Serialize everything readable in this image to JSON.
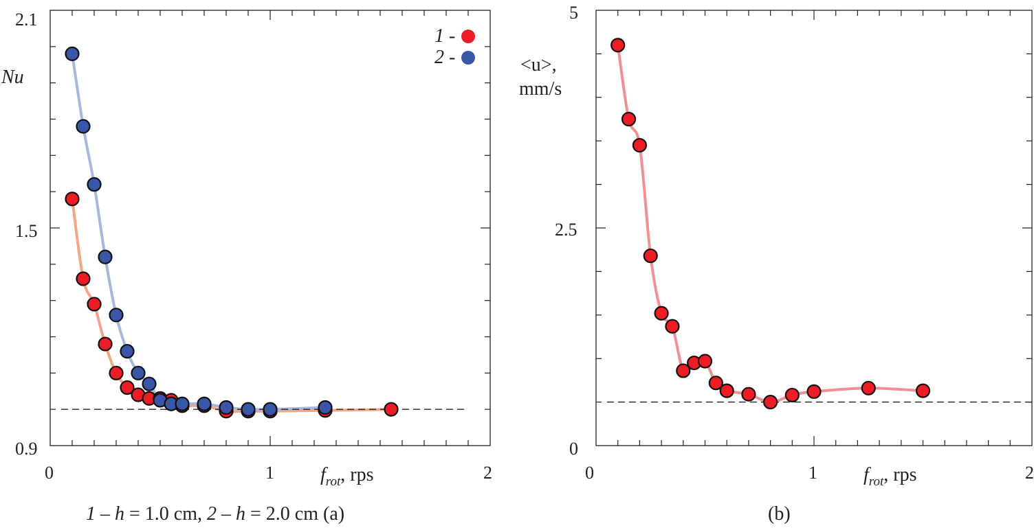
{
  "colors": {
    "series1_marker": "#ee1c25",
    "series2_marker": "#3a56a8",
    "series1_curve": "#f2a07f",
    "series2_curve": "#a3b3dc",
    "panel_b_curve": "#ef8a8e",
    "axis": "#231f20"
  },
  "chart_data": [
    {
      "type": "scatter",
      "panel": "a",
      "ylabel": "Nu",
      "xlabel": {
        "main": "f",
        "sub": "rot",
        "unit": ", rps"
      },
      "xlim": [
        0,
        2
      ],
      "ylim": [
        0.9,
        2.1
      ],
      "x_ticks": [
        "0",
        "1",
        "2"
      ],
      "y_ticks": [
        "0.9",
        "1.5",
        "2.1"
      ],
      "x_tick_values": [
        0,
        1,
        2
      ],
      "y_tick_values": [
        0.9,
        1.5,
        2.1
      ],
      "legend": [
        {
          "num": "1",
          "dash": " -",
          "color": "#ee1c25"
        },
        {
          "num": "2",
          "dash": " -",
          "color": "#3a56a8"
        }
      ],
      "caption": {
        "n1": "1",
        "sep1": " –  ",
        "h1": "h",
        "v1": " = 1.0  cm, ",
        "n2": "2",
        "sep2": " –  ",
        "h2": "h",
        "v2": " = 2.0  cm (a)"
      },
      "reference_line": {
        "y": 1.0,
        "style": "dashed"
      },
      "series": [
        {
          "name": "1",
          "color": "#ee1c25",
          "x": [
            0.1,
            0.15,
            0.2,
            0.25,
            0.3,
            0.35,
            0.4,
            0.45,
            0.5,
            0.55,
            0.6,
            0.7,
            0.8,
            0.9,
            1.0,
            1.25,
            1.55
          ],
          "y": [
            1.58,
            1.36,
            1.29,
            1.18,
            1.1,
            1.06,
            1.04,
            1.03,
            1.03,
            1.025,
            1.01,
            1.01,
            0.995,
            0.995,
            0.995,
            0.997,
            1.0
          ]
        },
        {
          "name": "2",
          "color": "#3a56a8",
          "x": [
            0.1,
            0.15,
            0.2,
            0.25,
            0.3,
            0.35,
            0.4,
            0.45,
            0.5,
            0.55,
            0.6,
            0.7,
            0.8,
            0.9,
            1.0,
            1.25
          ],
          "y": [
            1.98,
            1.78,
            1.62,
            1.42,
            1.26,
            1.16,
            1.1,
            1.07,
            1.025,
            1.015,
            1.015,
            1.015,
            1.005,
            1.0,
            1.0,
            1.005
          ]
        }
      ]
    },
    {
      "type": "scatter",
      "panel": "b",
      "ylabel": {
        "line1": "<u>,",
        "line2": "mm/s",
        "italic_part": "u"
      },
      "xlabel": {
        "main": "f",
        "sub": "rot",
        "unit": ", rps"
      },
      "xlim": [
        0,
        2
      ],
      "ylim": [
        0,
        5
      ],
      "x_ticks": [
        "0",
        "1",
        "2"
      ],
      "y_ticks": [
        "0",
        "2.5",
        "5"
      ],
      "x_tick_values": [
        0,
        1,
        2
      ],
      "y_tick_values": [
        0,
        2.5,
        5
      ],
      "caption": "(b)",
      "reference_line": {
        "y": 0.5,
        "style": "dashed"
      },
      "series": [
        {
          "name": "<u>",
          "color": "#ee1c25",
          "x": [
            0.1,
            0.15,
            0.2,
            0.25,
            0.3,
            0.35,
            0.4,
            0.45,
            0.5,
            0.55,
            0.6,
            0.7,
            0.8,
            0.9,
            1.0,
            1.25,
            1.5
          ],
          "y": [
            4.6,
            3.75,
            3.45,
            2.18,
            1.52,
            1.37,
            0.86,
            0.95,
            0.97,
            0.72,
            0.63,
            0.59,
            0.5,
            0.58,
            0.62,
            0.66,
            0.63
          ]
        }
      ]
    }
  ]
}
